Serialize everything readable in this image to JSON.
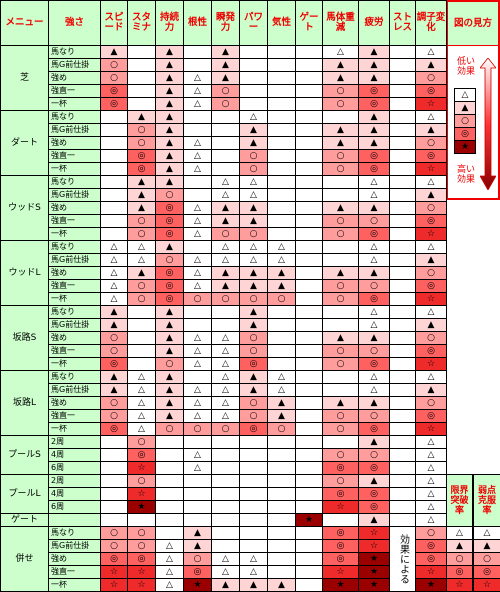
{
  "header": {
    "menu": "メニュー",
    "strength": "強さ",
    "columns": [
      "スピード",
      "スタミナ",
      "持続力",
      "根性",
      "瞬発力",
      "パワー",
      "気性",
      "ゲート",
      "馬体重減",
      "疲労",
      "ストレス",
      "調子変化"
    ],
    "extra_columns": [
      "限界突破率",
      "弱点克服率"
    ]
  },
  "legend": {
    "title": "図の見方",
    "low": "低い効果",
    "high": "高い効果",
    "symbols": [
      "△",
      "▲",
      "○",
      "◎",
      "★"
    ]
  },
  "groups": [
    {
      "name": "芝",
      "rows": [
        {
          "strength": "馬なり",
          "cells": [
            "▲",
            null,
            "▲",
            null,
            "▲",
            null,
            null,
            null,
            "△",
            "▲",
            null,
            "△"
          ]
        },
        {
          "strength": "馬G前仕掛",
          "cells": [
            "○",
            null,
            "▲",
            null,
            "▲",
            null,
            null,
            null,
            "▲",
            "▲",
            null,
            "▲"
          ]
        },
        {
          "strength": "強め",
          "cells": [
            "○",
            null,
            "▲",
            "△",
            "▲",
            null,
            null,
            null,
            "▲",
            "▲",
            null,
            "○"
          ]
        },
        {
          "strength": "強直一",
          "cells": [
            "◎",
            null,
            "▲",
            "△",
            "○",
            null,
            null,
            null,
            "○",
            "◎",
            null,
            "◎"
          ]
        },
        {
          "strength": "一杯",
          "cells": [
            "◎",
            null,
            "▲",
            "△",
            "○",
            null,
            null,
            null,
            "○",
            "◎",
            null,
            "☆"
          ]
        }
      ]
    },
    {
      "name": "ダート",
      "rows": [
        {
          "strength": "馬なり",
          "cells": [
            null,
            "▲",
            "▲",
            null,
            null,
            "△",
            null,
            null,
            null,
            "▲",
            null,
            "△"
          ]
        },
        {
          "strength": "馬G前仕掛",
          "cells": [
            null,
            "○",
            "▲",
            null,
            null,
            "▲",
            null,
            null,
            "▲",
            "▲",
            null,
            "▲"
          ]
        },
        {
          "strength": "強め",
          "cells": [
            null,
            "○",
            "▲",
            "△",
            null,
            "▲",
            null,
            null,
            "▲",
            "▲",
            null,
            "○"
          ]
        },
        {
          "strength": "強直一",
          "cells": [
            null,
            "◎",
            "▲",
            "△",
            null,
            "○",
            null,
            null,
            "○",
            "◎",
            null,
            "◎"
          ]
        },
        {
          "strength": "一杯",
          "cells": [
            null,
            "◎",
            "▲",
            "△",
            null,
            "○",
            null,
            null,
            "○",
            "◎",
            null,
            "☆"
          ]
        }
      ]
    },
    {
      "name": "ウッドS",
      "rows": [
        {
          "strength": "馬なり",
          "cells": [
            null,
            "▲",
            "▲",
            null,
            "△",
            "△",
            null,
            null,
            null,
            "△",
            null,
            "△"
          ]
        },
        {
          "strength": "馬G前仕掛",
          "cells": [
            null,
            "▲",
            "○",
            null,
            "△",
            "△",
            null,
            null,
            null,
            "△",
            null,
            "▲"
          ]
        },
        {
          "strength": "強め",
          "cells": [
            null,
            "▲",
            "◎",
            "△",
            "▲",
            "▲",
            null,
            null,
            "▲",
            "▲",
            null,
            "○"
          ]
        },
        {
          "strength": "強直一",
          "cells": [
            null,
            "○",
            "◎",
            "△",
            "▲",
            "▲",
            null,
            null,
            "○",
            "○",
            null,
            "◎"
          ]
        },
        {
          "strength": "一杯",
          "cells": [
            null,
            "○",
            "◎",
            "△",
            "○",
            "○",
            null,
            null,
            "○",
            "◎",
            null,
            "☆"
          ]
        }
      ]
    },
    {
      "name": "ウッドL",
      "rows": [
        {
          "strength": "馬なり",
          "cells": [
            "△",
            "△",
            "▲",
            null,
            "△",
            "△",
            "△",
            null,
            null,
            "△",
            null,
            "△"
          ]
        },
        {
          "strength": "馬G前仕掛",
          "cells": [
            "△",
            "△",
            "○",
            "△",
            "△",
            "△",
            "△",
            null,
            null,
            "△",
            null,
            "▲"
          ]
        },
        {
          "strength": "強め",
          "cells": [
            "△",
            "▲",
            "◎",
            "△",
            "▲",
            "▲",
            "▲",
            null,
            "▲",
            "▲",
            null,
            "○"
          ]
        },
        {
          "strength": "強直一",
          "cells": [
            "△",
            "○",
            "◎",
            "△",
            "▲",
            "▲",
            "▲",
            null,
            "○",
            "○",
            null,
            "◎"
          ]
        },
        {
          "strength": "一杯",
          "cells": [
            "△",
            "○",
            "◎",
            "○",
            "○",
            "○",
            "○",
            null,
            "○",
            "◎",
            null,
            "☆"
          ]
        }
      ]
    },
    {
      "name": "坂路S",
      "rows": [
        {
          "strength": "馬なり",
          "cells": [
            "▲",
            null,
            "▲",
            null,
            null,
            "▲",
            null,
            null,
            null,
            "△",
            null,
            "△"
          ]
        },
        {
          "strength": "馬G前仕掛",
          "cells": [
            "▲",
            null,
            "▲",
            null,
            null,
            "▲",
            null,
            null,
            null,
            "△",
            null,
            "▲"
          ]
        },
        {
          "strength": "強め",
          "cells": [
            "○",
            null,
            "▲",
            "△",
            "△",
            "○",
            null,
            null,
            "▲",
            "▲",
            null,
            "○"
          ]
        },
        {
          "strength": "強直一",
          "cells": [
            "○",
            null,
            "▲",
            "△",
            "△",
            "○",
            null,
            null,
            "○",
            "○",
            null,
            "◎"
          ]
        },
        {
          "strength": "一杯",
          "cells": [
            "◎",
            null,
            "○",
            "△",
            "△",
            "◎",
            null,
            null,
            "○",
            "◎",
            null,
            "☆"
          ]
        }
      ]
    },
    {
      "name": "坂路L",
      "rows": [
        {
          "strength": "馬なり",
          "cells": [
            "▲",
            "△",
            "▲",
            null,
            "△",
            "▲",
            "△",
            null,
            null,
            "△",
            null,
            "△"
          ]
        },
        {
          "strength": "馬G前仕掛",
          "cells": [
            "▲",
            "△",
            "▲",
            "△",
            "△",
            "▲",
            "△",
            null,
            null,
            "△",
            null,
            "▲"
          ]
        },
        {
          "strength": "強め",
          "cells": [
            "○",
            "△",
            "▲",
            "△",
            "△",
            "○",
            "▲",
            null,
            "▲",
            "▲",
            null,
            "○"
          ]
        },
        {
          "strength": "強直一",
          "cells": [
            "○",
            "△",
            "▲",
            "△",
            "△",
            "○",
            "▲",
            null,
            "○",
            "○",
            null,
            "◎"
          ]
        },
        {
          "strength": "一杯",
          "cells": [
            "◎",
            "△",
            "○",
            "○",
            "○",
            "◎",
            "○",
            null,
            "○",
            "◎",
            null,
            "☆"
          ]
        }
      ]
    },
    {
      "name": "プールS",
      "rows": [
        {
          "strength": "2周",
          "cells": [
            null,
            "○",
            null,
            null,
            null,
            null,
            null,
            null,
            null,
            "▲",
            null,
            "△"
          ]
        },
        {
          "strength": "4周",
          "cells": [
            null,
            "◎",
            null,
            "△",
            null,
            null,
            null,
            null,
            "○",
            "○",
            null,
            "△"
          ]
        },
        {
          "strength": "6周",
          "cells": [
            null,
            "☆",
            null,
            "△",
            null,
            null,
            null,
            null,
            "◎",
            "◎",
            null,
            "△"
          ]
        }
      ]
    },
    {
      "name": "プールL",
      "rows": [
        {
          "strength": "2周",
          "cells": [
            null,
            "○",
            null,
            null,
            null,
            null,
            null,
            null,
            "○",
            "▲",
            null,
            "△"
          ]
        },
        {
          "strength": "4周",
          "cells": [
            null,
            "☆",
            null,
            null,
            null,
            null,
            null,
            null,
            "◎",
            "◎",
            null,
            "△"
          ]
        },
        {
          "strength": "6周",
          "cells": [
            null,
            "★",
            null,
            null,
            null,
            null,
            null,
            null,
            "☆",
            "◎",
            null,
            "△"
          ]
        }
      ]
    },
    {
      "name": "ゲート",
      "rows": [
        {
          "strength": null,
          "cells": [
            null,
            null,
            null,
            null,
            null,
            null,
            null,
            "★",
            null,
            "▲",
            null,
            "△"
          ]
        }
      ]
    },
    {
      "name": "併せ",
      "note": "効果による",
      "rows": [
        {
          "strength": "馬なり",
          "cells": [
            "○",
            "○",
            null,
            "▲",
            null,
            null,
            null,
            null,
            "◎",
            "☆",
            null,
            "○"
          ],
          "extra": [
            "△",
            "△"
          ]
        },
        {
          "strength": "馬G前仕掛",
          "cells": [
            "○",
            "○",
            "△",
            "▲",
            null,
            null,
            null,
            null,
            "◎",
            "☆",
            null,
            "◎"
          ],
          "extra": [
            "▲",
            "▲"
          ]
        },
        {
          "strength": "強め",
          "cells": [
            "◎",
            "◎",
            "△",
            "○",
            "△",
            "△",
            null,
            null,
            "◎",
            "★",
            null,
            "◎"
          ],
          "extra": [
            "○",
            "○"
          ]
        },
        {
          "strength": "強直一",
          "cells": [
            "☆",
            "☆",
            "△",
            "◎",
            "△",
            "△",
            null,
            null,
            "☆",
            "★",
            null,
            "☆"
          ],
          "extra": [
            "◎",
            "◎"
          ]
        },
        {
          "strength": "一杯",
          "cells": [
            "☆",
            "☆",
            "△",
            "★",
            "▲",
            "▲",
            "▲",
            null,
            "★",
            "★",
            null,
            "★"
          ],
          "extra": [
            "☆",
            "☆"
          ]
        }
      ]
    }
  ]
}
